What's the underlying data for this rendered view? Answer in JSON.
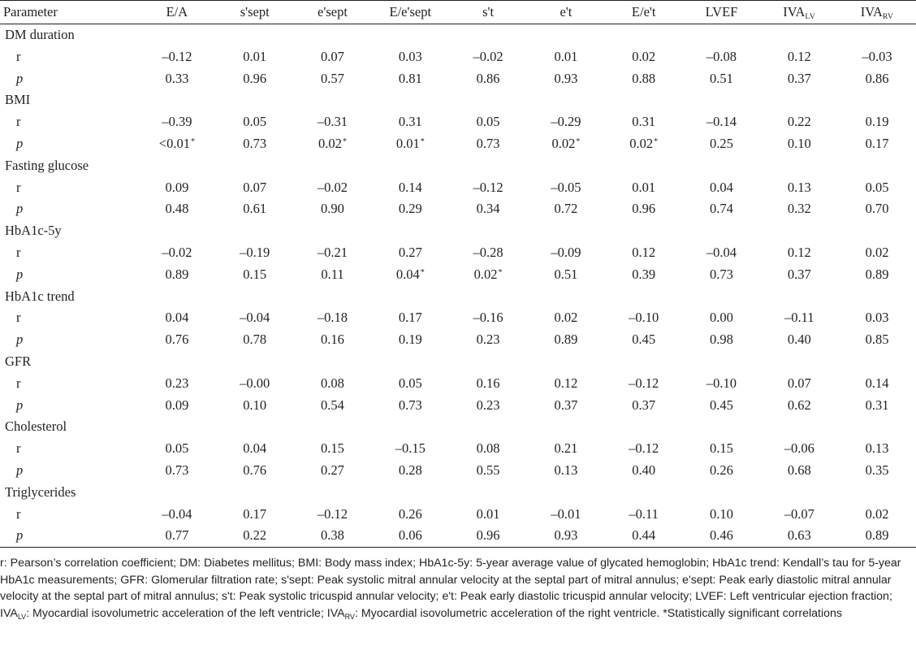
{
  "table": {
    "first_header": "Parameter",
    "columns": [
      {
        "main": "E/A",
        "sub": ""
      },
      {
        "main": "s'sept",
        "sub": ""
      },
      {
        "main": "e'sept",
        "sub": ""
      },
      {
        "main": "E/e'sept",
        "sub": ""
      },
      {
        "main": "s't",
        "sub": ""
      },
      {
        "main": "e't",
        "sub": ""
      },
      {
        "main": "E/e't",
        "sub": ""
      },
      {
        "main": "LVEF",
        "sub": ""
      },
      {
        "main": "IVA",
        "sub": "LV"
      },
      {
        "main": "IVA",
        "sub": "RV"
      }
    ],
    "groups": [
      {
        "name": "DM duration",
        "r": [
          "–0.12",
          "0.01",
          "0.07",
          "0.03",
          "–0.02",
          "0.01",
          "0.02",
          "–0.08",
          "0.12",
          "–0.03"
        ],
        "p": [
          "0.33",
          "0.96",
          "0.57",
          "0.81",
          "0.86",
          "0.93",
          "0.88",
          "0.51",
          "0.37",
          "0.86"
        ]
      },
      {
        "name": "BMI",
        "r": [
          "–0.39",
          "0.05",
          "–0.31",
          "0.31",
          "0.05",
          "–0.29",
          "0.31",
          "–0.14",
          "0.22",
          "0.19"
        ],
        "p": [
          "<0.01*",
          "0.73",
          "0.02*",
          "0.01*",
          "0.73",
          "0.02*",
          "0.02*",
          "0.25",
          "0.10",
          "0.17"
        ]
      },
      {
        "name": "Fasting glucose",
        "r": [
          "0.09",
          "0.07",
          "–0.02",
          "0.14",
          "–0.12",
          "–0.05",
          "0.01",
          "0.04",
          "0.13",
          "0.05"
        ],
        "p": [
          "0.48",
          "0.61",
          "0.90",
          "0.29",
          "0.34",
          "0.72",
          "0.96",
          "0.74",
          "0.32",
          "0.70"
        ]
      },
      {
        "name": "HbA1c-5y",
        "r": [
          "–0.02",
          "–0.19",
          "–0.21",
          "0.27",
          "–0.28",
          "–0.09",
          "0.12",
          "–0.04",
          "0.12",
          "0.02"
        ],
        "p": [
          "0.89",
          "0.15",
          "0.11",
          "0.04*",
          "0.02*",
          "0.51",
          "0.39",
          "0.73",
          "0.37",
          "0.89"
        ]
      },
      {
        "name": "HbA1c trend",
        "r": [
          "0.04",
          "–0.04",
          "–0.18",
          "0.17",
          "–0.16",
          "0.02",
          "–0.10",
          "0.00",
          "–0.11",
          "0.03"
        ],
        "p": [
          "0.76",
          "0.78",
          "0.16",
          "0.19",
          "0.23",
          "0.89",
          "0.45",
          "0.98",
          "0.40",
          "0.85"
        ]
      },
      {
        "name": "GFR",
        "r": [
          "0.23",
          "–0.00",
          "0.08",
          "0.05",
          "0.16",
          "0.12",
          "–0.12",
          "–0.10",
          "0.07",
          "0.14"
        ],
        "p": [
          "0.09",
          "0.10",
          "0.54",
          "0.73",
          "0.23",
          "0.37",
          "0.37",
          "0.45",
          "0.62",
          "0.31"
        ]
      },
      {
        "name": "Cholesterol",
        "r": [
          "0.05",
          "0.04",
          "0.15",
          "–0.15",
          "0.08",
          "0.21",
          "–0.12",
          "0.15",
          "–0.06",
          "0.13"
        ],
        "p": [
          "0.73",
          "0.76",
          "0.27",
          "0.28",
          "0.55",
          "0.13",
          "0.40",
          "0.26",
          "0.68",
          "0.35"
        ]
      },
      {
        "name": "Triglycerides",
        "r": [
          "–0.04",
          "0.17",
          "–0.12",
          "0.26",
          "0.01",
          "–0.01",
          "–0.11",
          "0.10",
          "–0.07",
          "0.02"
        ],
        "p": [
          "0.77",
          "0.22",
          "0.38",
          "0.06",
          "0.96",
          "0.93",
          "0.44",
          "0.46",
          "0.63",
          "0.89"
        ]
      }
    ],
    "row_labels": {
      "r": "r",
      "p": "p"
    }
  },
  "footnote": [
    {
      "t": "r: Pearson’s correlation coefficient; DM: Diabetes mellitus; BMI: Body mass index; HbA1c-5y: 5-year average value of glycated hemoglobin; HbA1c trend: Kendall’s tau for 5-year HbA1c measurements; GFR: Glomerular filtration rate; s'sept: Peak systolic mitral annular velocity at the septal part of mitral annulus; e'sept: Peak early diastolic mitral annular velocity at the septal part of mitral annulus; s't: Peak systolic tricuspid annular velocity; e't: Peak early diastolic tricuspid annular velocity; LVEF: Left ventricular ejection fraction; IVA"
    },
    {
      "sub": "LV"
    },
    {
      "t": ": Myocardial isovolumetric acceleration of the left ventricle; IVA"
    },
    {
      "sub": "RV"
    },
    {
      "t": ": Myocardial isovolumetric acceleration of the right ventricle. *Statistically significant correlations"
    }
  ]
}
